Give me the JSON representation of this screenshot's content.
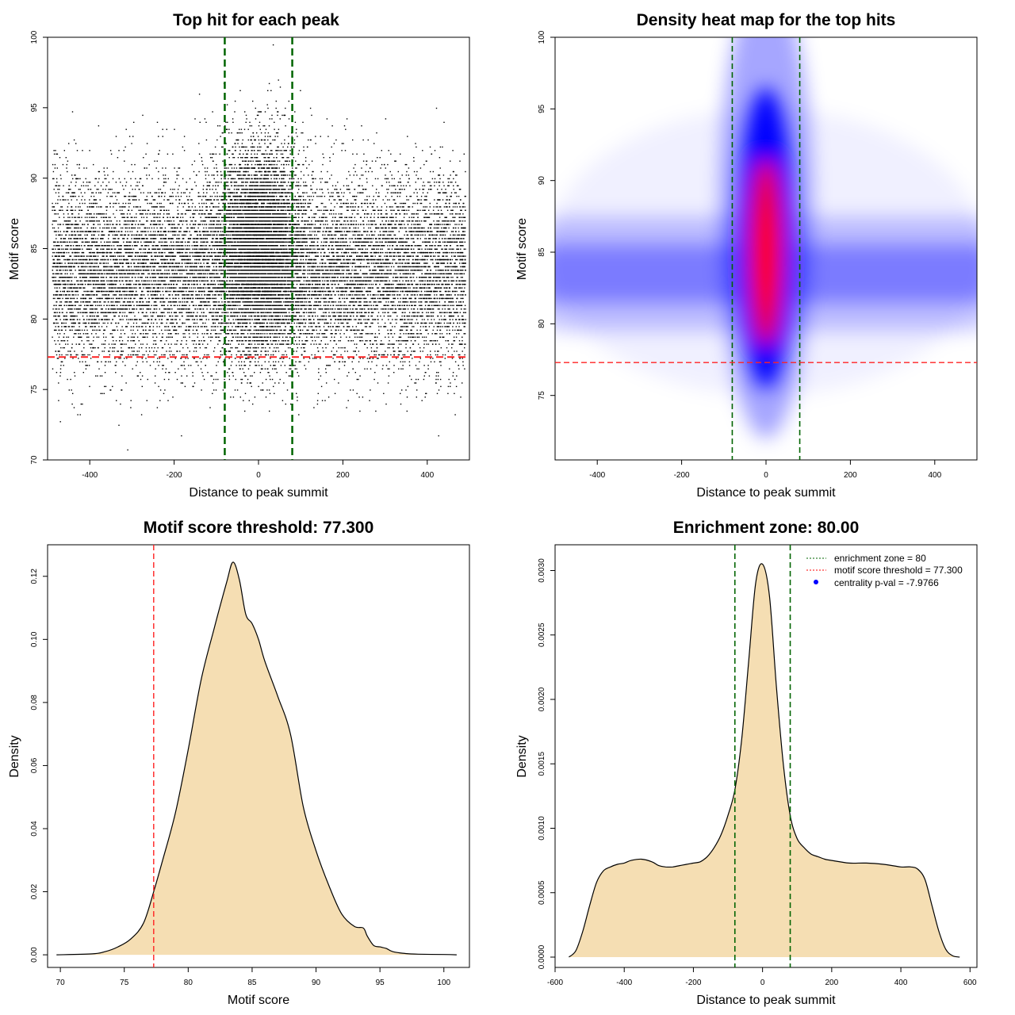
{
  "chart_data": [
    {
      "id": "p1",
      "type": "scatter",
      "title": "Top hit for each peak",
      "xlabel": "Distance to peak summit",
      "ylabel": "Motif score",
      "xlim": [
        -500,
        500
      ],
      "ylim": [
        70,
        100
      ],
      "xticks": [
        -400,
        -200,
        0,
        200,
        400
      ],
      "yticks": [
        70,
        75,
        80,
        85,
        90,
        95,
        100
      ],
      "description": "Dense cloud of roughly 20000 points: background hits spread uniformly over x in [-500,500] with scores centered near 83.5; a dense central cluster within about +/-80 bp of the summit reaching scores up to about 100.",
      "point_count_estimate": 20000,
      "background_score_center": 83.5,
      "central_cluster": {
        "x_center": 0,
        "x_spread": 50,
        "score_center": 85.5,
        "score_max": 100
      },
      "vlines": [
        -80,
        80
      ],
      "hline": 77.3
    },
    {
      "id": "p2",
      "type": "heatmap",
      "title": "Density heat map for the top hits",
      "xlabel": "Distance to peak summit",
      "ylabel": "Motif score",
      "xlim": [
        -500,
        500
      ],
      "ylim": [
        70.5,
        100
      ],
      "xticks": [
        -400,
        -200,
        0,
        200,
        400
      ],
      "yticks": [
        75,
        80,
        85,
        90,
        95,
        100
      ],
      "colors": [
        "#ffffff",
        "#0000ff",
        "#ff0000"
      ],
      "peak": {
        "x": 0,
        "y": 85
      },
      "vlines": [
        -80,
        80
      ],
      "hline": 77.3
    },
    {
      "id": "p3",
      "type": "area",
      "title": "Motif score threshold: 77.300",
      "xlabel": "Motif score",
      "ylabel": "Density",
      "xlim": [
        69,
        102
      ],
      "ylim": [
        -0.004,
        0.13
      ],
      "xticks": [
        70,
        75,
        80,
        85,
        90,
        95,
        100
      ],
      "yticks": [
        0.0,
        0.02,
        0.04,
        0.06,
        0.08,
        0.1,
        0.12
      ],
      "ytick_labels": [
        "0.00",
        "0.02",
        "0.04",
        "0.06",
        "0.08",
        "0.10",
        "0.12"
      ],
      "x": [
        69.7,
        72.5,
        73.5,
        74.5,
        75.5,
        76.5,
        77.3,
        78,
        79,
        80,
        81,
        82,
        83,
        83.5,
        84,
        84.5,
        85,
        85.5,
        86,
        87,
        88,
        89,
        90,
        91,
        92,
        93,
        93.7,
        94,
        94.5,
        95,
        95.5,
        96,
        97,
        98,
        100,
        101
      ],
      "y": [
        0,
        0.0003,
        0.001,
        0.0025,
        0.005,
        0.01,
        0.02,
        0.03,
        0.045,
        0.065,
        0.087,
        0.103,
        0.118,
        0.1245,
        0.119,
        0.108,
        0.105,
        0.1,
        0.093,
        0.082,
        0.07,
        0.047,
        0.033,
        0.022,
        0.013,
        0.009,
        0.0085,
        0.006,
        0.003,
        0.0025,
        0.002,
        0.001,
        0.0004,
        0.0002,
        0.0001,
        0
      ],
      "fill": "#f5deb3",
      "vline": 77.3
    },
    {
      "id": "p4",
      "type": "area",
      "title": "Enrichment zone: 80.00",
      "xlabel": "Distance to peak summit",
      "ylabel": "Density",
      "xlim": [
        -600,
        620
      ],
      "ylim": [
        -8e-05,
        0.0032
      ],
      "xticks": [
        -600,
        -400,
        -200,
        0,
        200,
        400,
        600
      ],
      "yticks": [
        0,
        0.0005,
        0.001,
        0.0015,
        0.002,
        0.0025,
        0.003
      ],
      "ytick_labels": [
        "0.0000",
        "0.0005",
        "0.0010",
        "0.0015",
        "0.0020",
        "0.0025",
        "0.0030"
      ],
      "x": [
        -560,
        -540,
        -520,
        -500,
        -480,
        -460,
        -440,
        -420,
        -400,
        -380,
        -350,
        -320,
        -300,
        -280,
        -260,
        -240,
        -220,
        -200,
        -180,
        -160,
        -140,
        -120,
        -100,
        -80,
        -60,
        -40,
        -20,
        0,
        20,
        40,
        60,
        80,
        100,
        120,
        140,
        160,
        180,
        200,
        250,
        300,
        350,
        400,
        430,
        450,
        470,
        490,
        510,
        530,
        550,
        570
      ],
      "y": [
        0,
        5e-05,
        0.0002,
        0.0004,
        0.00058,
        0.00067,
        0.0007,
        0.00072,
        0.00073,
        0.00075,
        0.00076,
        0.00074,
        0.00071,
        0.0007,
        0.0007,
        0.00071,
        0.00072,
        0.00073,
        0.00074,
        0.00078,
        0.00085,
        0.00095,
        0.0011,
        0.0013,
        0.0017,
        0.0023,
        0.0029,
        0.00305,
        0.0028,
        0.0021,
        0.0015,
        0.0011,
        0.00092,
        0.00085,
        0.0008,
        0.00078,
        0.00076,
        0.00075,
        0.00073,
        0.00073,
        0.00072,
        0.0007,
        0.0007,
        0.00068,
        0.0006,
        0.0004,
        0.0002,
        6e-05,
        1e-05,
        0
      ],
      "fill": "#f5deb3",
      "vlines": [
        -80,
        80
      ],
      "legend": {
        "position": "top-right",
        "entries": [
          {
            "label": "enrichment zone = 80",
            "style": "dotted",
            "color": "#006400"
          },
          {
            "label": "motif score threshold = 77.300",
            "style": "dotted",
            "color": "#ff0000"
          },
          {
            "label": "centrality p-val = -7.9766",
            "style": "point",
            "color": "#0000ff"
          }
        ]
      }
    }
  ],
  "colors": {
    "enrichment_line": "#006400",
    "threshold_line": "#ff2222",
    "density_fill": "#f5deb3",
    "points": "#000000"
  }
}
